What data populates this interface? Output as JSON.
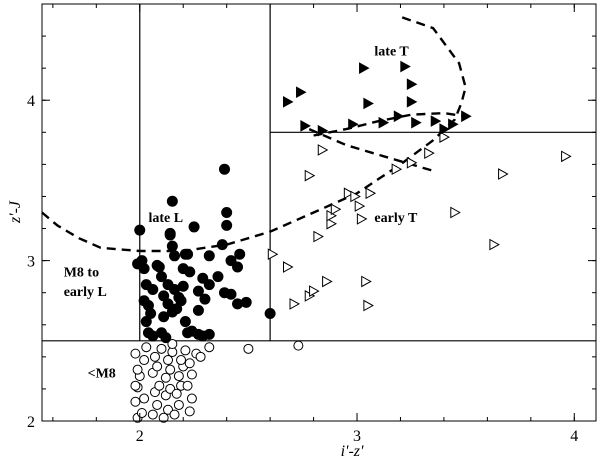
{
  "chart_data": {
    "type": "scatter",
    "xlabel": "i'-z'",
    "ylabel": "z'-J",
    "xlim": [
      1.55,
      4.1
    ],
    "ylim": [
      2.0,
      4.6
    ],
    "x_ticks": [
      2,
      3,
      4
    ],
    "y_ticks": [
      2,
      3,
      4
    ],
    "minor_x_step": 0.2,
    "minor_y_step": 0.2,
    "grid": false,
    "region_lines": {
      "vertical": [
        {
          "x": 2.0,
          "y": [
            2.5,
            4.6
          ]
        },
        {
          "x": 2.6,
          "y": [
            2.5,
            4.6
          ]
        }
      ],
      "horizontal": [
        {
          "y": 2.5,
          "x": [
            1.55,
            4.1
          ]
        },
        {
          "y": 3.8,
          "x": [
            2.6,
            4.1
          ]
        }
      ]
    },
    "annotations": [
      {
        "text": "late T",
        "x": 3.08,
        "y": 4.28
      },
      {
        "text": "late L",
        "x": 2.04,
        "y": 3.24
      },
      {
        "text": "early T",
        "x": 3.08,
        "y": 3.24
      },
      {
        "text": "M8 to",
        "x": 1.65,
        "y": 2.9
      },
      {
        "text": "early L",
        "x": 1.65,
        "y": 2.78
      },
      {
        "text": "<M8",
        "x": 1.76,
        "y": 2.27
      }
    ],
    "dashed_curves": [
      {
        "points": [
          [
            1.55,
            3.3
          ],
          [
            1.62,
            3.22
          ],
          [
            1.72,
            3.14
          ],
          [
            1.82,
            3.08
          ],
          [
            2.0,
            3.06
          ],
          [
            2.2,
            3.06
          ],
          [
            2.4,
            3.1
          ],
          [
            2.6,
            3.18
          ],
          [
            2.8,
            3.3
          ],
          [
            3.0,
            3.42
          ],
          [
            3.2,
            3.6
          ],
          [
            3.35,
            3.75
          ],
          [
            3.45,
            3.88
          ],
          [
            3.48,
            3.98
          ],
          [
            3.5,
            4.08
          ],
          [
            3.47,
            4.23
          ],
          [
            3.35,
            4.45
          ],
          [
            3.2,
            4.52
          ]
        ]
      },
      {
        "points": [
          [
            2.78,
            3.82
          ],
          [
            2.95,
            3.72
          ],
          [
            3.1,
            3.66
          ],
          [
            3.25,
            3.6
          ],
          [
            3.35,
            3.56
          ]
        ]
      },
      {
        "points": [
          [
            2.8,
            3.78
          ],
          [
            2.95,
            3.82
          ],
          [
            3.1,
            3.87
          ],
          [
            3.25,
            3.91
          ],
          [
            3.4,
            3.92
          ],
          [
            3.5,
            3.9
          ]
        ]
      }
    ],
    "series": [
      {
        "marker": "open-circle",
        "points": [
          [
            1.99,
            2.02
          ],
          [
            2.01,
            2.05
          ],
          [
            1.98,
            2.12
          ],
          [
            2.02,
            2.14
          ],
          [
            1.99,
            2.21
          ],
          [
            1.98,
            2.22
          ],
          [
            2.0,
            2.28
          ],
          [
            1.99,
            2.32
          ],
          [
            2.02,
            2.38
          ],
          [
            1.98,
            2.42
          ],
          [
            2.03,
            2.46
          ],
          [
            2.06,
            2.04
          ],
          [
            2.08,
            2.1
          ],
          [
            2.07,
            2.18
          ],
          [
            2.09,
            2.22
          ],
          [
            2.06,
            2.3
          ],
          [
            2.08,
            2.34
          ],
          [
            2.07,
            2.4
          ],
          [
            2.1,
            2.45
          ],
          [
            2.11,
            2.02
          ],
          [
            2.13,
            2.07
          ],
          [
            2.12,
            2.16
          ],
          [
            2.14,
            2.2
          ],
          [
            2.12,
            2.27
          ],
          [
            2.14,
            2.32
          ],
          [
            2.13,
            2.38
          ],
          [
            2.15,
            2.43
          ],
          [
            2.16,
            2.04
          ],
          [
            2.18,
            2.1
          ],
          [
            2.17,
            2.17
          ],
          [
            2.19,
            2.22
          ],
          [
            2.18,
            2.28
          ],
          [
            2.2,
            2.34
          ],
          [
            2.19,
            2.38
          ],
          [
            2.21,
            2.44
          ],
          [
            2.23,
            2.06
          ],
          [
            2.24,
            2.14
          ],
          [
            2.22,
            2.22
          ],
          [
            2.24,
            2.29
          ],
          [
            2.23,
            2.36
          ],
          [
            2.26,
            2.42
          ],
          [
            2.28,
            2.4
          ],
          [
            2.15,
            2.48
          ],
          [
            2.32,
            2.46
          ],
          [
            2.5,
            2.45
          ],
          [
            2.73,
            2.47
          ]
        ]
      },
      {
        "marker": "filled-circle",
        "points": [
          [
            2.0,
            3.19
          ],
          [
            2.01,
            3.0
          ],
          [
            1.99,
            2.98
          ],
          [
            2.02,
            2.95
          ],
          [
            2.03,
            2.85
          ],
          [
            2.02,
            2.75
          ],
          [
            2.04,
            2.72
          ],
          [
            2.03,
            2.62
          ],
          [
            2.04,
            2.55
          ],
          [
            2.06,
            2.53
          ],
          [
            2.05,
            2.67
          ],
          [
            2.06,
            2.82
          ],
          [
            2.08,
            2.97
          ],
          [
            2.09,
            2.96
          ],
          [
            2.1,
            2.9
          ],
          [
            2.11,
            2.78
          ],
          [
            2.11,
            2.65
          ],
          [
            2.1,
            2.55
          ],
          [
            2.12,
            2.52
          ],
          [
            2.13,
            2.85
          ],
          [
            2.14,
            3.17
          ],
          [
            2.15,
            3.37
          ],
          [
            2.14,
            3.16
          ],
          [
            2.15,
            3.09
          ],
          [
            2.16,
            3.03
          ],
          [
            2.16,
            2.82
          ],
          [
            2.13,
            2.73
          ],
          [
            2.15,
            2.68
          ],
          [
            2.17,
            2.7
          ],
          [
            2.18,
            2.77
          ],
          [
            2.2,
            2.95
          ],
          [
            2.21,
            3.04
          ],
          [
            2.22,
            3.04
          ],
          [
            2.2,
            2.84
          ],
          [
            2.19,
            2.75
          ],
          [
            2.21,
            2.62
          ],
          [
            2.22,
            2.55
          ],
          [
            2.24,
            2.56
          ],
          [
            2.23,
            2.93
          ],
          [
            2.25,
            3.21
          ],
          [
            2.27,
            2.81
          ],
          [
            2.27,
            2.69
          ],
          [
            2.27,
            2.54
          ],
          [
            2.29,
            2.89
          ],
          [
            2.29,
            2.53
          ],
          [
            2.32,
            2.54
          ],
          [
            2.3,
            2.76
          ],
          [
            2.32,
            2.85
          ],
          [
            2.32,
            3.03
          ],
          [
            2.36,
            2.9
          ],
          [
            2.38,
            3.1
          ],
          [
            2.39,
            3.57
          ],
          [
            2.39,
            2.8
          ],
          [
            2.42,
            3.0
          ],
          [
            2.45,
            2.96
          ],
          [
            2.45,
            2.73
          ],
          [
            2.42,
            2.79
          ],
          [
            2.4,
            3.22
          ],
          [
            2.4,
            3.3
          ],
          [
            2.46,
            3.04
          ],
          [
            2.49,
            2.74
          ],
          [
            2.6,
            2.67
          ]
        ]
      },
      {
        "marker": "open-triangle",
        "points": [
          [
            2.61,
            3.04
          ],
          [
            2.68,
            2.96
          ],
          [
            2.71,
            2.73
          ],
          [
            2.78,
            2.78
          ],
          [
            2.8,
            2.81
          ],
          [
            2.86,
            2.87
          ],
          [
            2.82,
            3.15
          ],
          [
            2.88,
            3.23
          ],
          [
            2.88,
            3.28
          ],
          [
            2.9,
            3.32
          ],
          [
            2.96,
            3.42
          ],
          [
            2.99,
            3.4
          ],
          [
            3.01,
            3.34
          ],
          [
            3.06,
            3.42
          ],
          [
            3.04,
            2.87
          ],
          [
            3.05,
            2.72
          ],
          [
            3.02,
            3.26
          ],
          [
            2.78,
            3.53
          ],
          [
            2.84,
            3.69
          ],
          [
            3.18,
            3.57
          ],
          [
            3.25,
            3.61
          ],
          [
            3.33,
            3.67
          ],
          [
            3.4,
            3.77
          ],
          [
            3.45,
            3.3
          ],
          [
            3.63,
            3.1
          ],
          [
            3.67,
            3.54
          ],
          [
            3.96,
            3.65
          ]
        ]
      },
      {
        "marker": "filled-triangle",
        "points": [
          [
            2.68,
            3.99
          ],
          [
            2.74,
            4.05
          ],
          [
            2.76,
            3.84
          ],
          [
            2.84,
            3.81
          ],
          [
            2.98,
            3.85
          ],
          [
            3.03,
            4.2
          ],
          [
            3.05,
            3.98
          ],
          [
            3.12,
            3.86
          ],
          [
            3.19,
            3.9
          ],
          [
            3.22,
            4.21
          ],
          [
            3.25,
            4.1
          ],
          [
            3.27,
            3.86
          ],
          [
            3.25,
            3.99
          ],
          [
            3.36,
            3.87
          ],
          [
            3.4,
            3.82
          ],
          [
            3.44,
            3.85
          ],
          [
            3.5,
            3.9
          ]
        ]
      }
    ]
  }
}
